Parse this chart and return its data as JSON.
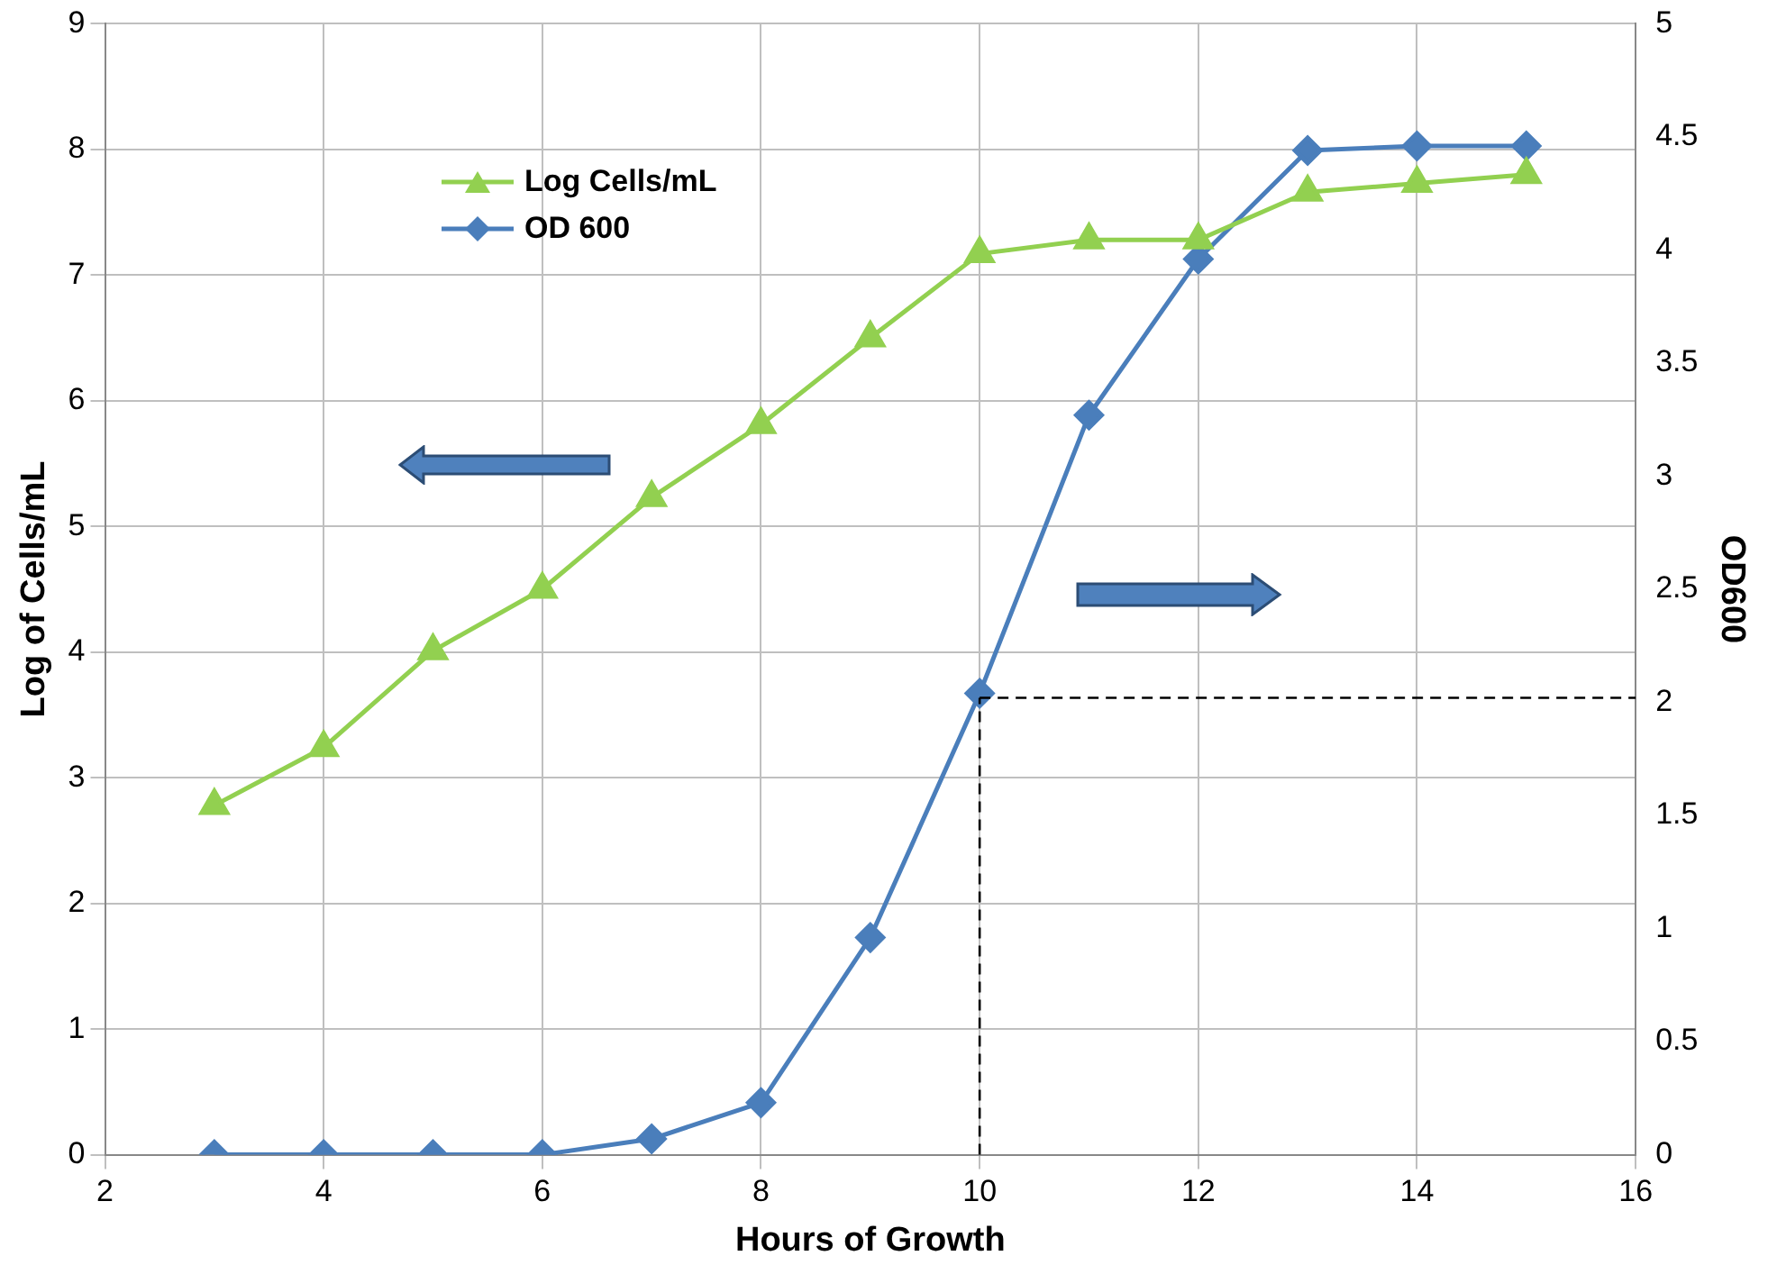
{
  "chart_data": {
    "type": "line",
    "xlabel": "Hours of Growth",
    "ylabel": "Log of Cells/mL",
    "y2label": "OD600",
    "x": [
      3,
      4,
      5,
      6,
      7,
      8,
      9,
      10,
      11,
      12,
      13,
      14,
      15
    ],
    "series": [
      {
        "name": "Log Cells/mL",
        "color": "#92d050",
        "marker": "triangle",
        "values": [
          2.78,
          3.24,
          4.01,
          4.5,
          5.23,
          5.81,
          6.5,
          7.17,
          7.28,
          7.28,
          7.66,
          7.73,
          7.8
        ]
      },
      {
        "name": "OD 600",
        "color": "#4a7ebb",
        "marker": "diamond",
        "axis": "y2",
        "values": [
          0,
          0,
          0,
          0,
          0.07,
          0.23,
          0.96,
          2.04,
          3.27,
          3.96,
          4.44,
          4.46,
          4.46
        ]
      }
    ],
    "xlim": [
      2,
      16
    ],
    "xticks": [
      2,
      4,
      6,
      8,
      10,
      12,
      14,
      16
    ],
    "ylim": [
      0,
      9
    ],
    "yticks": [
      0,
      1,
      2,
      3,
      4,
      5,
      6,
      7,
      8,
      9
    ],
    "y2lim": [
      0,
      5
    ],
    "y2ticks": [
      0,
      {
        "value": 0.5,
        "label": "0.5"
      },
      1,
      {
        "value": 1.5,
        "label": "1.5"
      },
      2,
      {
        "value": 2.5,
        "label": "2.5"
      },
      3,
      {
        "value": 3.5,
        "label": "3.5"
      },
      4,
      {
        "value": 4.5,
        "label": "4.5"
      },
      5
    ],
    "ref_lines": [
      {
        "axis": "x",
        "value": 10,
        "color": "#000000",
        "line_style": "dashed"
      },
      {
        "axis": "y2",
        "value": 2.02,
        "color": "#000000",
        "line_style": "dashed"
      }
    ],
    "grid": true,
    "legend": "top left",
    "line_style": "solid"
  }
}
